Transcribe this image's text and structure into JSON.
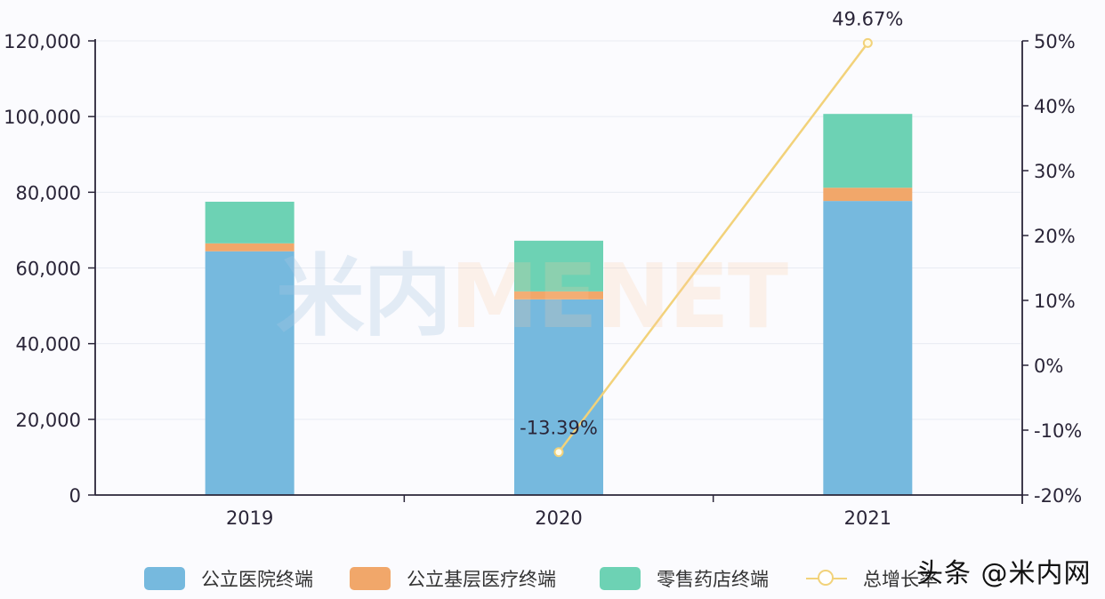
{
  "chart_data": {
    "type": "bar",
    "stacked": true,
    "categories": [
      "2019",
      "2020",
      "2021"
    ],
    "series": [
      {
        "name": "公立医院终端",
        "type": "bar",
        "axis": "left",
        "color": "#76b9de",
        "values": [
          64400,
          51700,
          77700
        ]
      },
      {
        "name": "公立基层医疗终端",
        "type": "bar",
        "axis": "left",
        "color": "#f1a76a",
        "values": [
          2100,
          2100,
          3500
        ]
      },
      {
        "name": "零售药店终端",
        "type": "bar",
        "axis": "left",
        "color": "#6dd2b4",
        "values": [
          11000,
          13400,
          19500
        ]
      },
      {
        "name": "总增长率",
        "type": "line",
        "axis": "right",
        "color": "#f2d27a",
        "values": [
          null,
          -13.39,
          49.67
        ],
        "labels": [
          "",
          "-13.39%",
          "49.67%"
        ]
      }
    ],
    "totals": [
      77500,
      67200,
      100700
    ],
    "title": "",
    "xlabel": "",
    "ylabel": "",
    "ylim": [
      0,
      120000
    ],
    "y_ticks": [
      "0",
      "20,000",
      "40,000",
      "60,000",
      "80,000",
      "100,000",
      "120,000"
    ],
    "y2lim": [
      -20,
      50
    ],
    "y2_ticks": [
      "-20%",
      "-10%",
      "0%",
      "10%",
      "20%",
      "30%",
      "40%",
      "50%"
    ],
    "grid": true,
    "legend_position": "bottom"
  },
  "legend": {
    "items": [
      {
        "label": "公立医院终端",
        "color": "#76b9de"
      },
      {
        "label": "公立基层医疗终端",
        "color": "#f1a76a"
      },
      {
        "label": "零售药店终端",
        "color": "#6dd2b4"
      },
      {
        "label": "总增长率",
        "color": "#f2d27a"
      }
    ]
  },
  "watermark": {
    "center_cn": "米内",
    "center_en": "MENET",
    "corner": "头条 @米内网"
  }
}
